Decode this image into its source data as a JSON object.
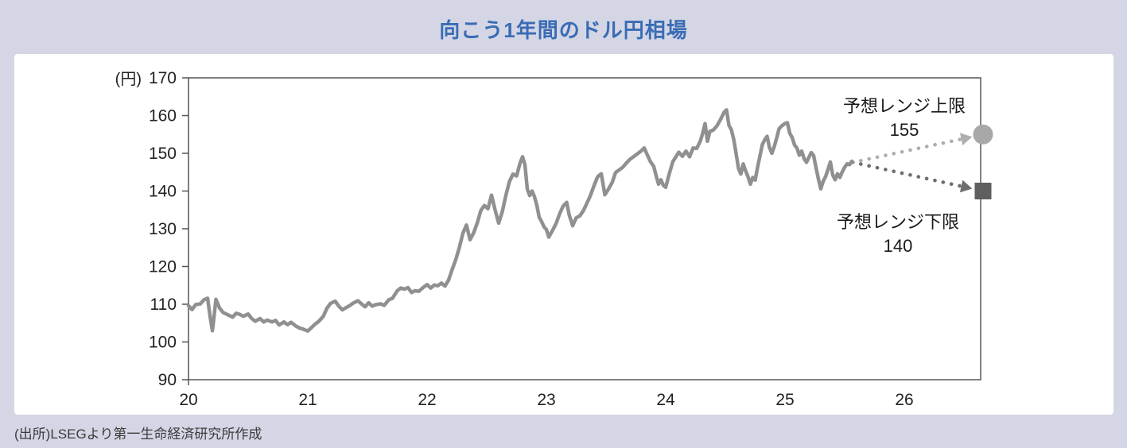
{
  "page": {
    "title": "向こう1年間のドル円相場",
    "source": "(出所)LSEGより第一生命経済研究所作成"
  },
  "colors": {
    "background": "#d4d6e5",
    "card": "#ffffff",
    "title_text": "#3a6cb5",
    "axis": "#555555",
    "tick_text": "#222222",
    "line": "#909090",
    "upper_dotted": "#aeaeae",
    "upper_marker": "#a8a8a8",
    "lower_dotted": "#6e6e6e",
    "lower_marker": "#5f5f5f",
    "annotation_text": "#1a1a1a",
    "source_text": "#3c3c3c"
  },
  "chart_data": {
    "type": "line",
    "title": "向こう1年間のドル円相場",
    "xlabel": "",
    "ylabel": "(円)",
    "grid": false,
    "legend": "none",
    "xlim": [
      2020,
      2026.64
    ],
    "ylim": [
      90,
      170
    ],
    "x_ticks": [
      "20",
      "21",
      "22",
      "23",
      "24",
      "25",
      "26"
    ],
    "x_tick_years": [
      2020,
      2021,
      2022,
      2023,
      2024,
      2025,
      2026
    ],
    "y_ticks": [
      "170",
      "160",
      "150",
      "140",
      "130",
      "120",
      "110",
      "100",
      "90"
    ],
    "y_tick_values": [
      170,
      160,
      150,
      140,
      130,
      120,
      110,
      100,
      90
    ],
    "series": [
      {
        "name": "ドル円相場",
        "points": [
          [
            2020,
            109.6
          ],
          [
            2020.03,
            108.6
          ],
          [
            2020.06,
            109.9
          ],
          [
            2020.1,
            110.1
          ],
          [
            2020.13,
            111.2
          ],
          [
            2020.16,
            111.6
          ],
          [
            2020.18,
            107
          ],
          [
            2020.2,
            103
          ],
          [
            2020.21,
            105.5
          ],
          [
            2020.23,
            111.3
          ],
          [
            2020.26,
            109
          ],
          [
            2020.29,
            107.8
          ],
          [
            2020.33,
            107.2
          ],
          [
            2020.37,
            106.6
          ],
          [
            2020.4,
            107.6
          ],
          [
            2020.43,
            107.3
          ],
          [
            2020.46,
            106.8
          ],
          [
            2020.5,
            107.4
          ],
          [
            2020.53,
            106.2
          ],
          [
            2020.56,
            105.5
          ],
          [
            2020.6,
            106.2
          ],
          [
            2020.63,
            105.3
          ],
          [
            2020.66,
            105.8
          ],
          [
            2020.7,
            105.3
          ],
          [
            2020.73,
            105.7
          ],
          [
            2020.76,
            104.5
          ],
          [
            2020.8,
            105.3
          ],
          [
            2020.83,
            104.6
          ],
          [
            2020.86,
            105.2
          ],
          [
            2020.9,
            104.2
          ],
          [
            2020.93,
            103.7
          ],
          [
            2020.96,
            103.4
          ],
          [
            2021,
            102.9
          ],
          [
            2021.03,
            103.8
          ],
          [
            2021.06,
            104.7
          ],
          [
            2021.09,
            105.4
          ],
          [
            2021.13,
            106.8
          ],
          [
            2021.16,
            108.9
          ],
          [
            2021.19,
            110.2
          ],
          [
            2021.23,
            110.8
          ],
          [
            2021.26,
            109.5
          ],
          [
            2021.29,
            108.5
          ],
          [
            2021.32,
            109.1
          ],
          [
            2021.35,
            109.6
          ],
          [
            2021.38,
            110.3
          ],
          [
            2021.42,
            110.9
          ],
          [
            2021.45,
            110.1
          ],
          [
            2021.48,
            109.3
          ],
          [
            2021.51,
            110.4
          ],
          [
            2021.54,
            109.5
          ],
          [
            2021.57,
            109.9
          ],
          [
            2021.61,
            110.1
          ],
          [
            2021.64,
            109.7
          ],
          [
            2021.68,
            111.2
          ],
          [
            2021.71,
            111.6
          ],
          [
            2021.75,
            113.6
          ],
          [
            2021.78,
            114.3
          ],
          [
            2021.81,
            114
          ],
          [
            2021.84,
            114.4
          ],
          [
            2021.87,
            113.1
          ],
          [
            2021.9,
            113.6
          ],
          [
            2021.93,
            113.4
          ],
          [
            2021.97,
            114.5
          ],
          [
            2022,
            115.2
          ],
          [
            2022.03,
            114.3
          ],
          [
            2022.06,
            115.1
          ],
          [
            2022.09,
            114.9
          ],
          [
            2022.12,
            115.6
          ],
          [
            2022.15,
            114.8
          ],
          [
            2022.18,
            116.4
          ],
          [
            2022.21,
            119.2
          ],
          [
            2022.24,
            121.8
          ],
          [
            2022.27,
            125
          ],
          [
            2022.3,
            128.8
          ],
          [
            2022.33,
            131
          ],
          [
            2022.36,
            127.1
          ],
          [
            2022.39,
            128.9
          ],
          [
            2022.42,
            131.5
          ],
          [
            2022.45,
            134.8
          ],
          [
            2022.48,
            136.2
          ],
          [
            2022.51,
            135.3
          ],
          [
            2022.54,
            138.9
          ],
          [
            2022.57,
            135
          ],
          [
            2022.6,
            131.5
          ],
          [
            2022.63,
            134.5
          ],
          [
            2022.66,
            138.8
          ],
          [
            2022.69,
            142.5
          ],
          [
            2022.72,
            144.5
          ],
          [
            2022.75,
            144
          ],
          [
            2022.78,
            147.5
          ],
          [
            2022.8,
            149.1
          ],
          [
            2022.82,
            147
          ],
          [
            2022.84,
            140.5
          ],
          [
            2022.86,
            138.8
          ],
          [
            2022.88,
            140
          ],
          [
            2022.9,
            138.5
          ],
          [
            2022.92,
            136.2
          ],
          [
            2022.94,
            133
          ],
          [
            2022.96,
            131.9
          ],
          [
            2022.98,
            130.5
          ],
          [
            2023,
            129.8
          ],
          [
            2023.02,
            127.8
          ],
          [
            2023.05,
            129.5
          ],
          [
            2023.08,
            131.3
          ],
          [
            2023.11,
            133.9
          ],
          [
            2023.14,
            136
          ],
          [
            2023.17,
            137
          ],
          [
            2023.19,
            133.8
          ],
          [
            2023.22,
            130.8
          ],
          [
            2023.25,
            132.9
          ],
          [
            2023.28,
            133.4
          ],
          [
            2023.31,
            134.8
          ],
          [
            2023.34,
            136.8
          ],
          [
            2023.37,
            138.9
          ],
          [
            2023.4,
            141.5
          ],
          [
            2023.43,
            143.8
          ],
          [
            2023.46,
            144.6
          ],
          [
            2023.49,
            139
          ],
          [
            2023.52,
            140.5
          ],
          [
            2023.55,
            142.2
          ],
          [
            2023.58,
            144.9
          ],
          [
            2023.61,
            145.6
          ],
          [
            2023.64,
            146.3
          ],
          [
            2023.67,
            147.4
          ],
          [
            2023.7,
            148.4
          ],
          [
            2023.73,
            149.1
          ],
          [
            2023.76,
            149.8
          ],
          [
            2023.79,
            150.5
          ],
          [
            2023.82,
            151.4
          ],
          [
            2023.84,
            150
          ],
          [
            2023.87,
            147.9
          ],
          [
            2023.9,
            146.5
          ],
          [
            2023.92,
            144
          ],
          [
            2023.94,
            141.8
          ],
          [
            2023.96,
            143
          ],
          [
            2023.98,
            141.5
          ],
          [
            2024,
            141
          ],
          [
            2024.03,
            144.6
          ],
          [
            2024.06,
            147.8
          ],
          [
            2024.09,
            149.3
          ],
          [
            2024.11,
            150.3
          ],
          [
            2024.14,
            149.2
          ],
          [
            2024.17,
            150.6
          ],
          [
            2024.2,
            149.1
          ],
          [
            2024.23,
            151.4
          ],
          [
            2024.26,
            151.3
          ],
          [
            2024.29,
            153.2
          ],
          [
            2024.31,
            155.3
          ],
          [
            2024.33,
            157.9
          ],
          [
            2024.35,
            153.2
          ],
          [
            2024.37,
            155.8
          ],
          [
            2024.4,
            156.2
          ],
          [
            2024.43,
            157.3
          ],
          [
            2024.46,
            159
          ],
          [
            2024.49,
            160.9
          ],
          [
            2024.51,
            161.5
          ],
          [
            2024.53,
            157.4
          ],
          [
            2024.55,
            156.3
          ],
          [
            2024.57,
            153.7
          ],
          [
            2024.59,
            150
          ],
          [
            2024.61,
            146
          ],
          [
            2024.63,
            144.5
          ],
          [
            2024.65,
            147.2
          ],
          [
            2024.67,
            145.3
          ],
          [
            2024.69,
            143.8
          ],
          [
            2024.71,
            141.8
          ],
          [
            2024.73,
            143.6
          ],
          [
            2024.75,
            142.9
          ],
          [
            2024.77,
            146.3
          ],
          [
            2024.79,
            149.3
          ],
          [
            2024.81,
            152.3
          ],
          [
            2024.83,
            153.6
          ],
          [
            2024.85,
            154.5
          ],
          [
            2024.87,
            151.5
          ],
          [
            2024.89,
            150
          ],
          [
            2024.91,
            151.8
          ],
          [
            2024.93,
            154
          ],
          [
            2024.95,
            156.5
          ],
          [
            2024.97,
            157.2
          ],
          [
            2025,
            157.9
          ],
          [
            2025.02,
            158.1
          ],
          [
            2025.04,
            155.3
          ],
          [
            2025.06,
            154.2
          ],
          [
            2025.08,
            152.2
          ],
          [
            2025.1,
            151.4
          ],
          [
            2025.12,
            149.5
          ],
          [
            2025.14,
            150.6
          ],
          [
            2025.16,
            148.6
          ],
          [
            2025.18,
            147.6
          ],
          [
            2025.2,
            148.9
          ],
          [
            2025.22,
            150.2
          ],
          [
            2025.24,
            149.4
          ],
          [
            2025.26,
            146.2
          ],
          [
            2025.28,
            143.2
          ],
          [
            2025.3,
            140.6
          ],
          [
            2025.32,
            142.6
          ],
          [
            2025.34,
            143.8
          ],
          [
            2025.36,
            145.7
          ],
          [
            2025.38,
            147.7
          ],
          [
            2025.4,
            144.3
          ],
          [
            2025.42,
            143
          ],
          [
            2025.44,
            144.6
          ],
          [
            2025.46,
            143.6
          ],
          [
            2025.48,
            145.1
          ],
          [
            2025.5,
            146.3
          ],
          [
            2025.52,
            147.2
          ],
          [
            2025.54,
            147
          ],
          [
            2025.56,
            147.9
          ],
          [
            2025.57,
            147.6
          ]
        ]
      }
    ],
    "forecast": {
      "marker_x": 2026.66,
      "upper": {
        "label": "予想レンジ上限",
        "value": "155",
        "y": 155,
        "marker": "circle"
      },
      "lower": {
        "label": "予想レンジ下限",
        "value": "140",
        "y": 140,
        "marker": "square"
      }
    }
  }
}
